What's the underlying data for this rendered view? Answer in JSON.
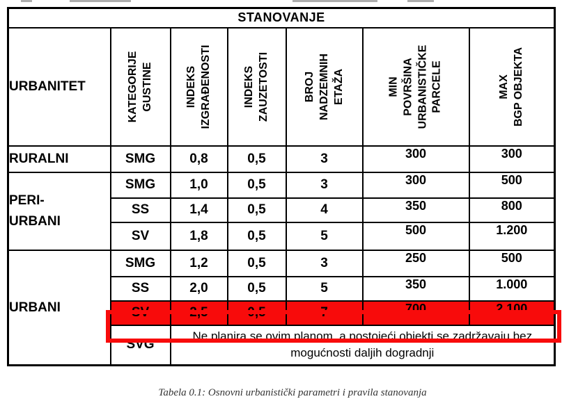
{
  "title": "STANOVANJE",
  "header": {
    "urbanitet": "URBANITET",
    "kategorije_gustine": "KATEGORIJE\nGUSTINE",
    "indeks_izgradjenosti": "INDEKS\nIZGRAĐENOSTI",
    "indeks_zauzetosti": "INDEKS\nZAUZETOSTI",
    "broj_nadzemnih_etaza": "BROJ\nNADZEMNIH\nETAŽA",
    "min_povrsina_parcele": "MIN\nPOVRŠINA\nURBANISTIČKE\nPARCELE",
    "max_bgp_objekta": "MAX\nBGP OBJEKTA"
  },
  "groups": {
    "ruralni": "RURALNI",
    "peri_urbani": "PERI-\nURBANI",
    "urbani": "URBANI"
  },
  "rows": [
    {
      "kategorija": "SMG",
      "indeks_izgradjenosti": "0,8",
      "indeks_zauzetosti": "0,5",
      "broj_etaza": "3",
      "min_povrsina": "300",
      "max_bgp": "300"
    },
    {
      "kategorija": "SMG",
      "indeks_izgradjenosti": "1,0",
      "indeks_zauzetosti": "0,5",
      "broj_etaza": "3",
      "min_povrsina": "300",
      "max_bgp": "500"
    },
    {
      "kategorija": "SS",
      "indeks_izgradjenosti": "1,4",
      "indeks_zauzetosti": "0,5",
      "broj_etaza": "4",
      "min_povrsina": "350",
      "max_bgp": "800"
    },
    {
      "kategorija": "SV",
      "indeks_izgradjenosti": "1,8",
      "indeks_zauzetosti": "0,5",
      "broj_etaza": "5",
      "min_povrsina": "500",
      "max_bgp": "1.200"
    },
    {
      "kategorija": "SMG",
      "indeks_izgradjenosti": "1,2",
      "indeks_zauzetosti": "0,5",
      "broj_etaza": "3",
      "min_povrsina": "250",
      "max_bgp": "500"
    },
    {
      "kategorija": "SS",
      "indeks_izgradjenosti": "2,0",
      "indeks_zauzetosti": "0,5",
      "broj_etaza": "5",
      "min_povrsina": "350",
      "max_bgp": "1.000"
    },
    {
      "kategorija": "SV",
      "indeks_izgradjenosti": "2,5",
      "indeks_zauzetosti": "0,5",
      "broj_etaza": "7",
      "min_povrsina": "700",
      "max_bgp": "2.100",
      "highlighted": true
    }
  ],
  "svg_row": {
    "kategorija": "SVG",
    "napomena": "Ne planira se ovim planom, a postojeći objekti se zadržavaju bez mogućnosti daljih dogradnji"
  },
  "caption": "Tabela 0.1: Osnovni urbanistički parametri i pravila stanovanja",
  "colors": {
    "header_yellow": "#faf7a0",
    "value_blue": "#2e75b6",
    "highlight_red": "#f80b0b",
    "border_black": "#000000"
  }
}
